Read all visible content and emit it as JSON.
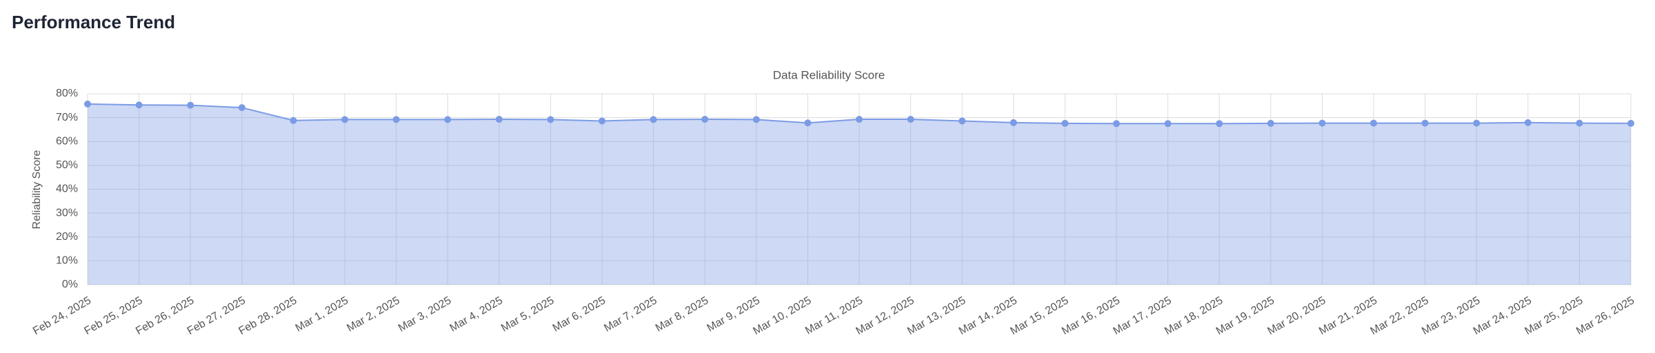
{
  "page_title": "Performance Trend",
  "chart_data": {
    "type": "area",
    "title": "Data Reliability Score",
    "y_label": "Reliability Score",
    "categories": [
      "Feb 24, 2025",
      "Feb 25, 2025",
      "Feb 26, 2025",
      "Feb 27, 2025",
      "Feb 28, 2025",
      "Mar 1, 2025",
      "Mar 2, 2025",
      "Mar 3, 2025",
      "Mar 4, 2025",
      "Mar 5, 2025",
      "Mar 6, 2025",
      "Mar 7, 2025",
      "Mar 8, 2025",
      "Mar 9, 2025",
      "Mar 10, 2025",
      "Mar 11, 2025",
      "Mar 12, 2025",
      "Mar 13, 2025",
      "Mar 14, 2025",
      "Mar 15, 2025",
      "Mar 16, 2025",
      "Mar 17, 2025",
      "Mar 18, 2025",
      "Mar 19, 2025",
      "Mar 20, 2025",
      "Mar 21, 2025",
      "Mar 22, 2025",
      "Mar 23, 2025",
      "Mar 24, 2025",
      "Mar 25, 2025",
      "Mar 26, 2025"
    ],
    "values": [
      75.7,
      75.3,
      75.2,
      74.2,
      68.8,
      69.2,
      69.2,
      69.2,
      69.3,
      69.2,
      68.6,
      69.2,
      69.3,
      69.2,
      67.8,
      69.3,
      69.3,
      68.6,
      67.9,
      67.6,
      67.5,
      67.5,
      67.5,
      67.6,
      67.7,
      67.7,
      67.7,
      67.7,
      67.9,
      67.7,
      67.6
    ],
    "color": "#7b9be5",
    "ylim": [
      0,
      80
    ],
    "yticks": [
      {
        "value": 0,
        "label": "0%"
      },
      {
        "value": 10,
        "label": "10%"
      },
      {
        "value": 20,
        "label": "20%"
      },
      {
        "value": 30,
        "label": "30%"
      },
      {
        "value": 40,
        "label": "40%"
      },
      {
        "value": 50,
        "label": "50%"
      },
      {
        "value": 60,
        "label": "60%"
      },
      {
        "value": 70,
        "label": "70%"
      },
      {
        "value": 80,
        "label": "80%"
      }
    ],
    "grid": true
  }
}
